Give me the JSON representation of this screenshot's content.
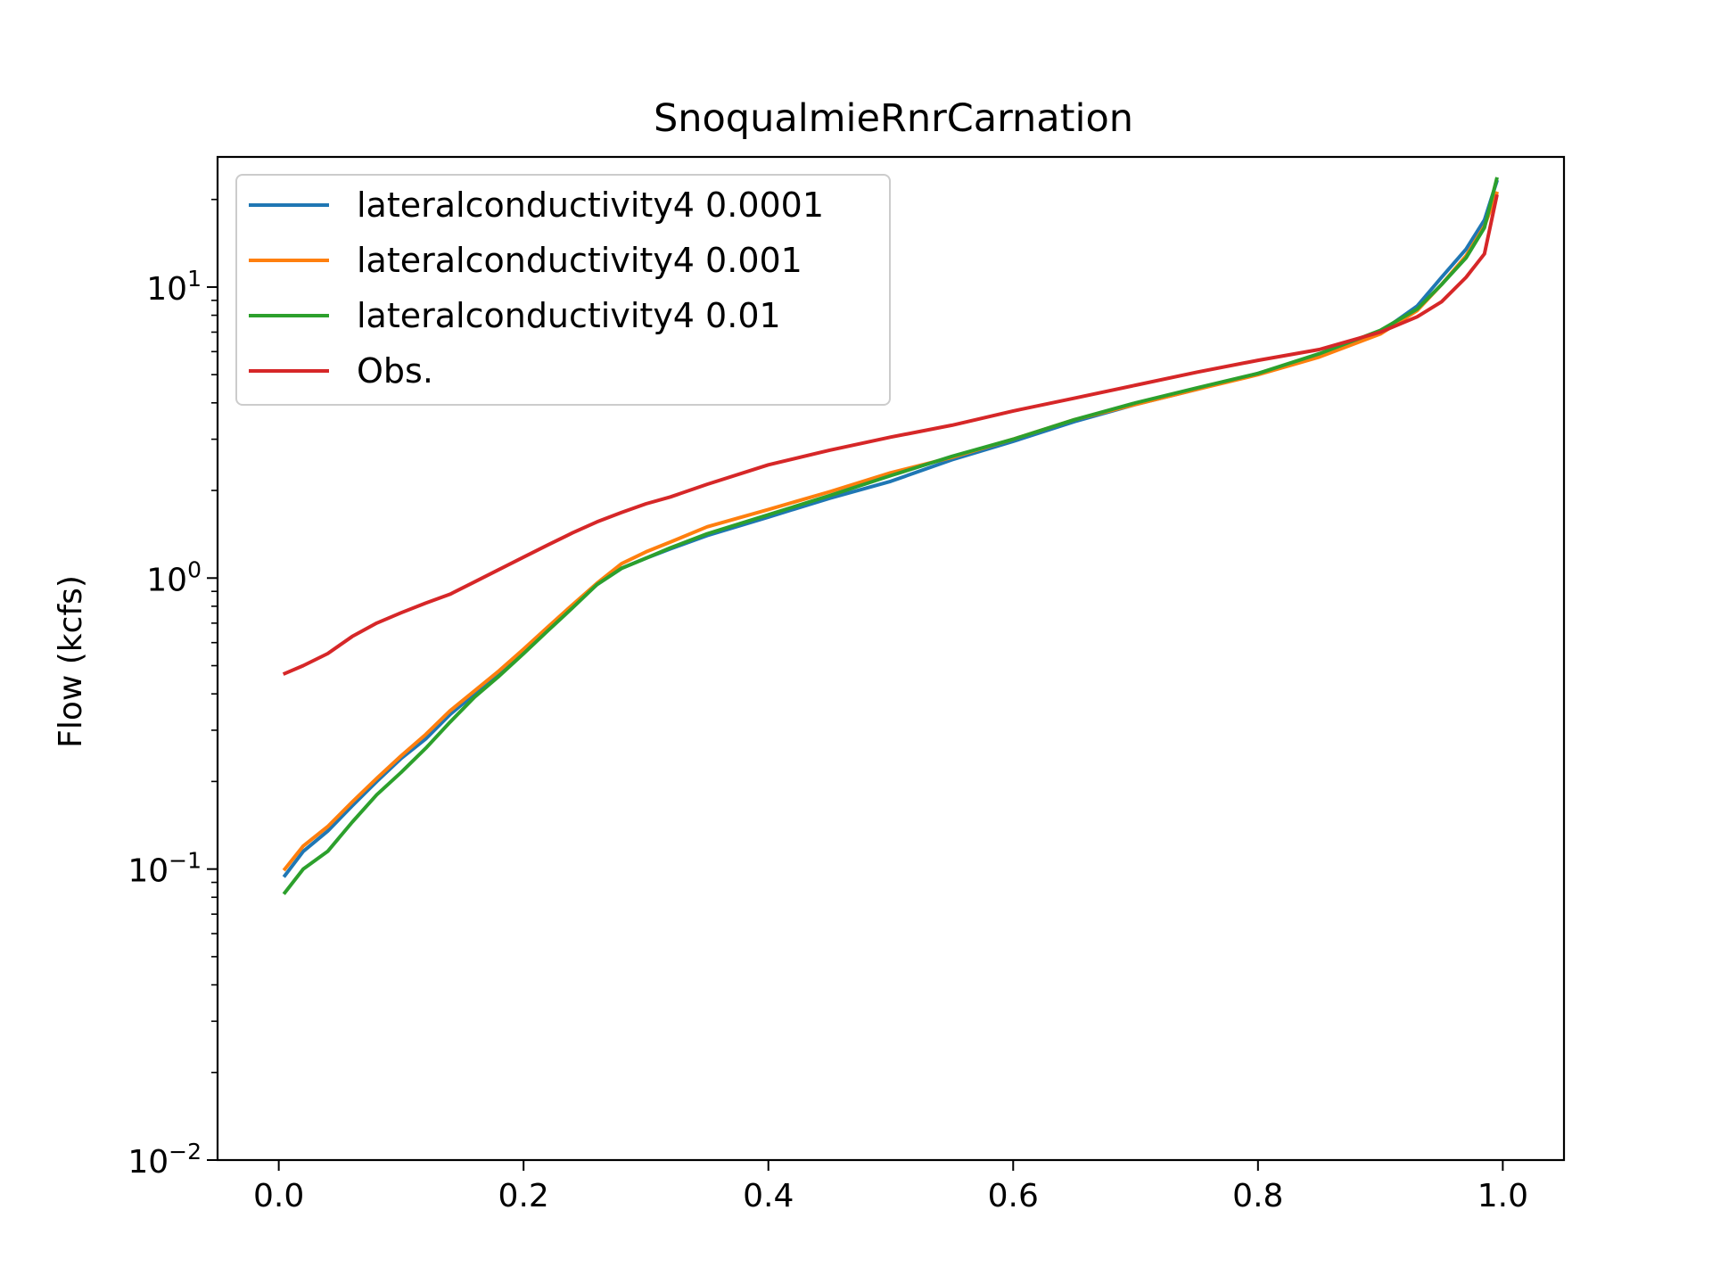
{
  "chart_data": {
    "type": "line",
    "title": "SnoqualmieRnrCarnation",
    "xlabel": "",
    "ylabel": "Flow (kcfs)",
    "yscale": "log",
    "xlim": [
      -0.05,
      1.05
    ],
    "ylim": [
      0.01,
      28
    ],
    "xticks": [
      0.0,
      0.2,
      0.4,
      0.6,
      0.8,
      1.0
    ],
    "xtick_labels": [
      "0.0",
      "0.2",
      "0.4",
      "0.6",
      "0.8",
      "1.0"
    ],
    "yticks": [
      {
        "value": 10,
        "base": "10",
        "exp": "1"
      },
      {
        "value": 1,
        "base": "10",
        "exp": "0"
      },
      {
        "value": 0.1,
        "base": "10",
        "exp": "−1"
      },
      {
        "value": 0.01,
        "base": "10",
        "exp": "−2"
      }
    ],
    "grid": false,
    "legend_position": "upper-left",
    "series": [
      {
        "name": "lateralconductivity4 0.0001",
        "color": "#1f77b4",
        "x": [
          0.005,
          0.02,
          0.04,
          0.06,
          0.08,
          0.1,
          0.12,
          0.14,
          0.16,
          0.18,
          0.2,
          0.22,
          0.24,
          0.26,
          0.28,
          0.3,
          0.32,
          0.35,
          0.4,
          0.45,
          0.5,
          0.55,
          0.6,
          0.65,
          0.7,
          0.75,
          0.8,
          0.85,
          0.9,
          0.93,
          0.95,
          0.97,
          0.985,
          0.995
        ],
        "y": [
          0.095,
          0.115,
          0.135,
          0.165,
          0.2,
          0.24,
          0.28,
          0.34,
          0.4,
          0.47,
          0.56,
          0.67,
          0.8,
          0.95,
          1.08,
          1.17,
          1.26,
          1.4,
          1.62,
          1.88,
          2.15,
          2.55,
          2.95,
          3.45,
          3.95,
          4.45,
          5.05,
          5.8,
          7.0,
          8.6,
          10.8,
          13.5,
          17.0,
          23.0
        ]
      },
      {
        "name": "lateralconductivity4 0.001",
        "color": "#ff7f0e",
        "x": [
          0.005,
          0.02,
          0.04,
          0.06,
          0.08,
          0.1,
          0.12,
          0.14,
          0.16,
          0.18,
          0.2,
          0.22,
          0.24,
          0.26,
          0.28,
          0.3,
          0.32,
          0.35,
          0.4,
          0.45,
          0.5,
          0.55,
          0.6,
          0.65,
          0.7,
          0.75,
          0.8,
          0.85,
          0.9,
          0.93,
          0.95,
          0.97,
          0.985,
          0.995
        ],
        "y": [
          0.1,
          0.12,
          0.14,
          0.17,
          0.205,
          0.245,
          0.29,
          0.35,
          0.41,
          0.48,
          0.57,
          0.68,
          0.81,
          0.96,
          1.12,
          1.23,
          1.33,
          1.5,
          1.72,
          1.98,
          2.3,
          2.6,
          3.0,
          3.5,
          3.95,
          4.45,
          5.0,
          5.75,
          6.9,
          8.3,
          10.2,
          12.8,
          16.2,
          21.0
        ]
      },
      {
        "name": "lateralconductivity4 0.01",
        "color": "#2ca02c",
        "x": [
          0.005,
          0.02,
          0.04,
          0.06,
          0.08,
          0.1,
          0.12,
          0.14,
          0.16,
          0.18,
          0.2,
          0.22,
          0.24,
          0.26,
          0.28,
          0.3,
          0.32,
          0.35,
          0.4,
          0.45,
          0.5,
          0.55,
          0.6,
          0.65,
          0.7,
          0.75,
          0.8,
          0.85,
          0.9,
          0.93,
          0.95,
          0.97,
          0.985,
          0.995
        ],
        "y": [
          0.083,
          0.1,
          0.115,
          0.145,
          0.18,
          0.215,
          0.26,
          0.32,
          0.39,
          0.46,
          0.55,
          0.66,
          0.79,
          0.95,
          1.08,
          1.17,
          1.27,
          1.42,
          1.65,
          1.92,
          2.25,
          2.62,
          3.0,
          3.5,
          4.0,
          4.5,
          5.05,
          5.9,
          7.1,
          8.4,
          10.2,
          12.6,
          16.0,
          23.5
        ]
      },
      {
        "name": "Obs.",
        "color": "#d62728",
        "x": [
          0.005,
          0.02,
          0.04,
          0.06,
          0.08,
          0.1,
          0.12,
          0.14,
          0.16,
          0.18,
          0.2,
          0.22,
          0.24,
          0.26,
          0.28,
          0.3,
          0.32,
          0.35,
          0.4,
          0.45,
          0.5,
          0.55,
          0.6,
          0.65,
          0.7,
          0.75,
          0.8,
          0.85,
          0.9,
          0.93,
          0.95,
          0.97,
          0.985,
          0.995
        ],
        "y": [
          0.47,
          0.5,
          0.55,
          0.63,
          0.7,
          0.76,
          0.82,
          0.88,
          0.97,
          1.07,
          1.18,
          1.3,
          1.43,
          1.56,
          1.68,
          1.8,
          1.9,
          2.1,
          2.45,
          2.75,
          3.05,
          3.35,
          3.75,
          4.15,
          4.6,
          5.1,
          5.6,
          6.1,
          7.0,
          7.9,
          8.9,
          10.8,
          13.0,
          20.5
        ]
      }
    ]
  }
}
